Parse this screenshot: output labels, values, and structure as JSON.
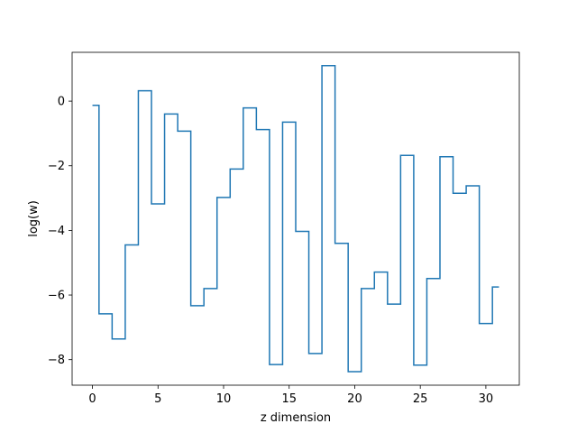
{
  "chart_data": {
    "type": "line",
    "step": "mid",
    "xlabel": "z dimension",
    "ylabel": "log(w)",
    "xlim": [
      -1.55,
      32.55
    ],
    "ylim": [
      -8.79,
      1.51
    ],
    "xticks": [
      0,
      5,
      10,
      15,
      20,
      25,
      30
    ],
    "yticks": [
      -8,
      -6,
      -4,
      -2,
      0
    ],
    "grid": false,
    "series": [
      {
        "color": "#1f77b4",
        "x": [
          0,
          1,
          2,
          3,
          4,
          5,
          6,
          7,
          8,
          9,
          10,
          11,
          12,
          13,
          14,
          15,
          16,
          17,
          18,
          19,
          20,
          21,
          22,
          23,
          24,
          25,
          26,
          27,
          28,
          29,
          30,
          31
        ],
        "y": [
          -0.13,
          -6.58,
          -7.36,
          -4.45,
          0.32,
          -3.18,
          -0.4,
          -0.93,
          -6.33,
          -5.8,
          -2.98,
          -2.1,
          -0.21,
          -0.88,
          -8.15,
          -0.65,
          -4.03,
          -7.81,
          1.1,
          -4.4,
          -8.37,
          -5.8,
          -5.29,
          -6.28,
          -1.68,
          -8.17,
          -5.49,
          -1.72,
          -2.85,
          -2.62,
          -6.88,
          -5.75
        ]
      }
    ]
  }
}
